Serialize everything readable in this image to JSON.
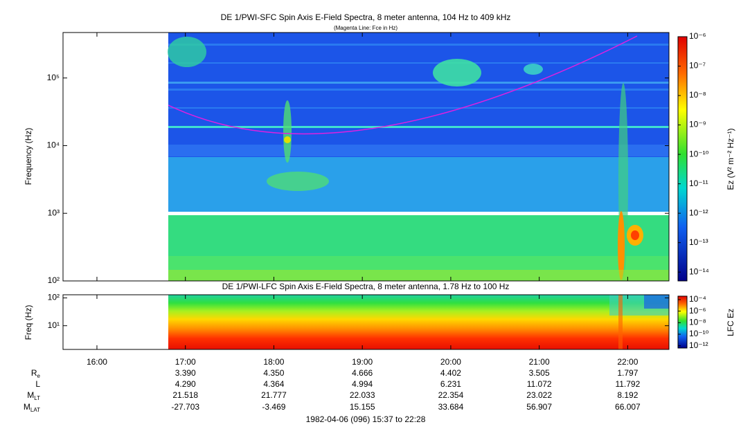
{
  "chart_data": [
    {
      "type": "heatmap",
      "title": "DE 1/PWI-SFC  Spin Axis E-Field Spectra, 8 meter antenna, 104 Hz to 409 kHz",
      "subtitle": "(Magenta Line: Fce in Hz)",
      "y_label": "Frequency (Hz)",
      "log_scale": true,
      "ylim": [
        100,
        470000
      ],
      "yticks": [
        {
          "value": 100,
          "label": "10²"
        },
        {
          "value": 1000,
          "label": "10³"
        },
        {
          "value": 10000,
          "label": "10⁴"
        },
        {
          "value": 100000,
          "label": "10⁵"
        }
      ],
      "colorbar_label": "Ez (V² m⁻² Hz⁻¹)",
      "clim": [
        1e-06,
        5e-15
      ],
      "cticks": [
        {
          "value": 1e-06,
          "label": "10⁻⁶"
        },
        {
          "value": 1e-07,
          "label": "10⁻⁷"
        },
        {
          "value": 1e-08,
          "label": "10⁻⁸"
        },
        {
          "value": 1e-09,
          "label": "10⁻⁹"
        },
        {
          "value": 1e-10,
          "label": "10⁻¹⁰"
        },
        {
          "value": 1e-11,
          "label": "10⁻¹¹"
        },
        {
          "value": 1e-12,
          "label": "10⁻¹²"
        },
        {
          "value": 1e-13,
          "label": "10⁻¹³"
        },
        {
          "value": 1e-14,
          "label": "10⁻¹⁴"
        }
      ]
    },
    {
      "type": "heatmap",
      "title": "DE 1/PWI-LFC  Spin Axis E-Field Spectra, 8 meter antenna, 1.78 Hz to 100 Hz",
      "y_label": "Freq (Hz)",
      "log_scale": true,
      "ylim": [
        1.4,
        130
      ],
      "yticks": [
        {
          "value": 10,
          "label": "10¹"
        },
        {
          "value": 100,
          "label": "10²"
        }
      ],
      "colorbar_label": "LFC Ez",
      "clim": [
        0.0004,
        4e-13
      ],
      "cticks": [
        {
          "value": 0.0001,
          "label": "10⁻⁴"
        },
        {
          "value": 1e-06,
          "label": "10⁻⁶"
        },
        {
          "value": 1e-08,
          "label": "10⁻⁸"
        },
        {
          "value": 1e-10,
          "label": "10⁻¹⁰"
        },
        {
          "value": 1e-12,
          "label": "10⁻¹²"
        }
      ]
    }
  ],
  "x_axis": {
    "xlim": [
      "15:37",
      "22:28"
    ],
    "xticks": [
      "16:00",
      "17:00",
      "18:00",
      "19:00",
      "20:00",
      "21:00",
      "22:00"
    ]
  },
  "ephemeris": [
    {
      "name": "R",
      "sub": "e",
      "values": [
        null,
        "3.390",
        "4.350",
        "4.666",
        "4.402",
        "3.505",
        "1.797"
      ]
    },
    {
      "name": "L",
      "values": [
        null,
        "4.290",
        "4.364",
        "4.994",
        "6.231",
        "11.072",
        "11.792"
      ]
    },
    {
      "name": "M",
      "sub": "LT",
      "values": [
        null,
        "21.518",
        "21.777",
        "22.033",
        "22.354",
        "23.022",
        "8.192"
      ]
    },
    {
      "name": "M",
      "sub": "LAT",
      "values": [
        null,
        "-27.703",
        "-3.469",
        "15.155",
        "33.684",
        "56.907",
        "66.007"
      ]
    }
  ],
  "footer": "1982-04-06 (096) 15:37 to 22:28"
}
